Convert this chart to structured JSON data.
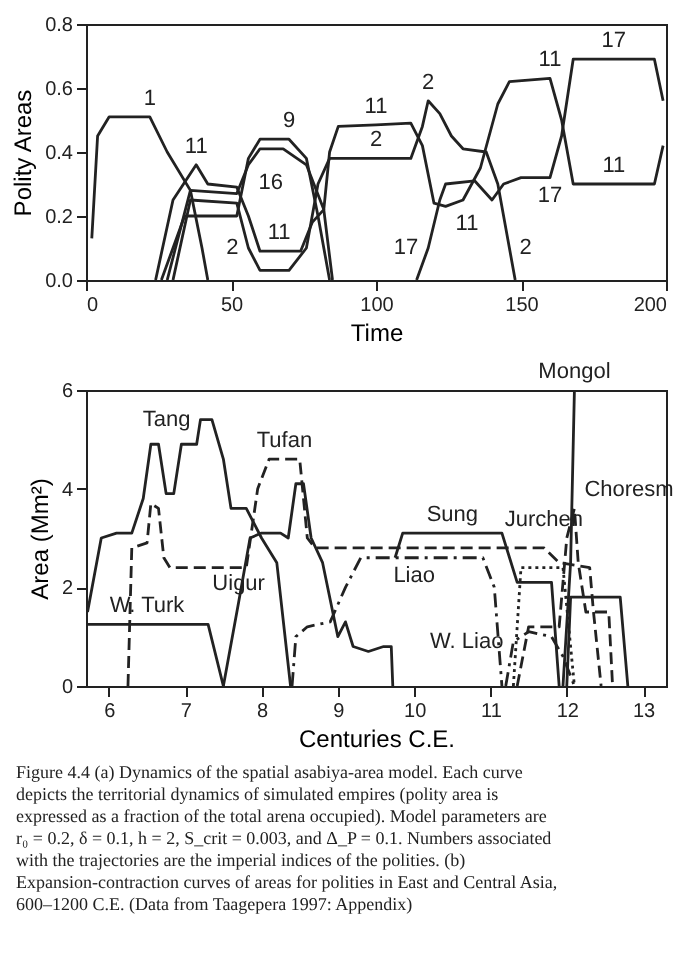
{
  "chart_data": [
    {
      "type": "line",
      "xlabel": "Time",
      "ylabel": "Polity Areas",
      "grid": false,
      "line_style": "solid",
      "xlim": [
        0,
        200
      ],
      "xticks": [
        0,
        50,
        100,
        150,
        200
      ],
      "ylim": [
        0,
        0.8
      ],
      "yticks": [
        {
          "value": 0,
          "label": "0.0"
        },
        0.2,
        0.4,
        0.6,
        0.8
      ],
      "series": [
        {
          "color": "#222222",
          "x": [
            2,
            4,
            8,
            22,
            28,
            36,
            40,
            42
          ],
          "values": [
            0.13,
            0.45,
            0.51,
            0.51,
            0.4,
            0.28,
            0.1,
            0
          ]
        },
        {
          "color": "#222222",
          "x": [
            24,
            30,
            38,
            42,
            52,
            56,
            60,
            74,
            78,
            82,
            84,
            87,
            100,
            112,
            116,
            120,
            124,
            130,
            136,
            142,
            146,
            160,
            164,
            168,
            182,
            196,
            199
          ],
          "values": [
            0,
            0.25,
            0.36,
            0.3,
            0.29,
            0.2,
            0.09,
            0.09,
            0.18,
            0.22,
            0.4,
            0.48,
            0.485,
            0.49,
            0.42,
            0.24,
            0.23,
            0.25,
            0.35,
            0.55,
            0.62,
            0.63,
            0.5,
            0.3,
            0.3,
            0.3,
            0.42
          ]
        },
        {
          "color": "#222222",
          "x": [
            26,
            34,
            44,
            52,
            56,
            60,
            70,
            76,
            80,
            84
          ],
          "values": [
            0,
            0.2,
            0.2,
            0.2,
            0.38,
            0.44,
            0.44,
            0.38,
            0.2,
            0
          ]
        },
        {
          "color": "#222222",
          "x": [
            28,
            36,
            52,
            56,
            60,
            68,
            76,
            82,
            85
          ],
          "values": [
            0,
            0.28,
            0.27,
            0.36,
            0.41,
            0.41,
            0.36,
            0.22,
            0
          ]
        },
        {
          "color": "#222222",
          "x": [
            30,
            36,
            52,
            56,
            60,
            70,
            76,
            80,
            84,
            86,
            100,
            112,
            116,
            118,
            122,
            126,
            130,
            138,
            142,
            146,
            148
          ],
          "values": [
            0,
            0.25,
            0.24,
            0.1,
            0.03,
            0.03,
            0.1,
            0.3,
            0.38,
            0.38,
            0.38,
            0.38,
            0.48,
            0.56,
            0.52,
            0.45,
            0.41,
            0.4,
            0.3,
            0.1,
            0
          ]
        },
        {
          "color": "#222222",
          "x": [
            114,
            118,
            122,
            124,
            134,
            140,
            144,
            150,
            160,
            164,
            168,
            182,
            196,
            199
          ],
          "values": [
            0,
            0.1,
            0.25,
            0.3,
            0.31,
            0.25,
            0.3,
            0.32,
            0.32,
            0.45,
            0.69,
            0.69,
            0.69,
            0.56
          ]
        }
      ],
      "annotations": [
        {
          "text": "1",
          "x": 22,
          "y": 0.51
        },
        {
          "text": "11",
          "x": 38,
          "y": 0.36
        },
        {
          "text": "9",
          "x": 70,
          "y": 0.44
        },
        {
          "text": "16",
          "x": 56,
          "y": 0.36
        },
        {
          "text": "11",
          "x": 74,
          "y": 0.09
        },
        {
          "text": "2",
          "x": 56,
          "y": 0.1
        },
        {
          "text": "11",
          "x": 100,
          "y": 0.485
        },
        {
          "text": "2",
          "x": 100,
          "y": 0.38
        },
        {
          "text": "2",
          "x": 118,
          "y": 0.56
        },
        {
          "text": "11",
          "x": 124,
          "y": 0.23
        },
        {
          "text": "2",
          "x": 146,
          "y": 0.1
        },
        {
          "text": "17",
          "x": 118,
          "y": 0.1
        },
        {
          "text": "11",
          "x": 160,
          "y": 0.63
        },
        {
          "text": "17",
          "x": 160,
          "y": 0.32
        },
        {
          "text": "17",
          "x": 182,
          "y": 0.69
        },
        {
          "text": "11",
          "x": 182,
          "y": 0.3
        }
      ]
    },
    {
      "type": "line",
      "xlabel": "Centuries C.E.",
      "ylabel": "Area (Mm²)",
      "grid": false,
      "xlim": [
        5.7,
        13.3
      ],
      "xticks": [
        6,
        7,
        8,
        9,
        10,
        11,
        12,
        13
      ],
      "ylim": [
        0,
        6
      ],
      "yticks": [
        0,
        2,
        4,
        6
      ],
      "series": [
        {
          "color": "#222222",
          "line_style": "solid",
          "x": [
            5.72,
            5.9,
            6.1,
            6.3,
            6.45,
            6.55,
            6.65,
            6.75,
            6.85,
            6.95,
            7.15,
            7.2,
            7.35,
            7.5,
            7.6,
            7.8,
            7.9,
            8.0,
            8.2,
            8.38
          ],
          "values": [
            1.5,
            3.0,
            3.1,
            3.1,
            3.8,
            4.9,
            4.9,
            3.9,
            3.9,
            4.9,
            4.9,
            5.4,
            5.4,
            4.6,
            3.6,
            3.6,
            3.3,
            3.0,
            2.5,
            0
          ]
        },
        {
          "color": "#222222",
          "line_style": "dashed",
          "x": [
            6.25,
            6.3,
            6.5,
            6.55,
            6.65,
            6.72,
            6.8,
            7.8,
            7.95,
            8.1,
            8.3,
            8.5,
            8.6,
            8.7,
            11.7,
            11.9,
            12.3,
            12.35,
            12.45
          ],
          "values": [
            0,
            2.8,
            2.9,
            3.7,
            3.6,
            2.6,
            2.4,
            2.4,
            4.0,
            4.6,
            4.6,
            4.6,
            3.0,
            2.8,
            2.8,
            2.5,
            2.4,
            1.5,
            0
          ]
        },
        {
          "color": "#222222",
          "line_style": "solid",
          "x": [
            5.72,
            6.5,
            7.3,
            7.5
          ],
          "values": [
            1.25,
            1.25,
            1.25,
            0
          ]
        },
        {
          "color": "#222222",
          "line_style": "solid",
          "x": [
            7.5,
            7.7,
            7.85,
            8.0,
            8.25,
            8.35,
            8.45,
            8.55,
            8.65,
            8.8,
            9.0,
            9.1,
            9.2,
            9.4,
            9.6,
            9.7,
            9.72
          ],
          "values": [
            0,
            1.7,
            3.0,
            3.1,
            3.1,
            3.0,
            4.1,
            4.1,
            3.0,
            2.5,
            1.0,
            1.3,
            0.8,
            0.7,
            0.8,
            0.8,
            0
          ]
        },
        {
          "color": "#222222",
          "line_style": "solid",
          "x": [
            9.75,
            9.85,
            10.5,
            11.15,
            11.25,
            11.35,
            11.8,
            11.9
          ],
          "values": [
            2.6,
            3.1,
            3.1,
            3.1,
            2.6,
            2.1,
            2.1,
            0
          ]
        },
        {
          "color": "#222222",
          "line_style": "dashdot",
          "x": [
            8.4,
            8.45,
            8.6,
            8.9,
            9.1,
            9.3,
            10.0,
            10.9,
            11.05,
            11.15
          ],
          "values": [
            0,
            1.0,
            1.2,
            1.3,
            2.0,
            2.6,
            2.6,
            2.6,
            2.0,
            0
          ]
        },
        {
          "color": "#222222",
          "line_style": "dashdot",
          "x": [
            11.2,
            11.3,
            11.5,
            11.8,
            11.95,
            12.1
          ],
          "values": [
            0,
            0.9,
            1.1,
            1.0,
            0.6,
            0
          ]
        },
        {
          "color": "#222222",
          "line_style": "dotted",
          "x": [
            11.3,
            11.4,
            11.7,
            11.95,
            12.1
          ],
          "values": [
            0,
            2.4,
            2.4,
            2.4,
            0
          ]
        },
        {
          "color": "#222222",
          "line_style": "dashed",
          "x": [
            11.35,
            11.5,
            11.9,
            12.0,
            12.1,
            12.15,
            12.25,
            12.55,
            12.6
          ],
          "values": [
            0,
            1.2,
            1.2,
            3.0,
            3.6,
            2.5,
            1.5,
            1.5,
            0
          ]
        },
        {
          "color": "#222222",
          "line_style": "solid",
          "x": [
            12.0,
            12.05,
            12.7,
            12.8
          ],
          "values": [
            0,
            1.8,
            1.8,
            0
          ]
        },
        {
          "color": "#222222",
          "line_style": "solid",
          "x": [
            11.95,
            12.05,
            12.1
          ],
          "values": [
            0,
            2.5,
            6.0
          ]
        }
      ],
      "annotations": [
        {
          "text": "Tang",
          "x": 7.2,
          "y": 5.4
        },
        {
          "text": "Tufan",
          "x": 8.3,
          "y": 4.6
        },
        {
          "text": "W. Turk",
          "x": 6.5,
          "y": 1.25
        },
        {
          "text": "Uigur",
          "x": 7.7,
          "y": 1.7
        },
        {
          "text": "Sung",
          "x": 10.5,
          "y": 3.1
        },
        {
          "text": "Liao",
          "x": 10.0,
          "y": 2.6
        },
        {
          "text": "W. Liao",
          "x": 11.3,
          "y": 0.9
        },
        {
          "text": "Jurchen",
          "x": 11.7,
          "y": 2.4
        },
        {
          "text": "Mongol",
          "x": 12.1,
          "y": 6.0
        },
        {
          "text": "Choresm",
          "x": 12.1,
          "y": 3.6
        },
        "Figure 4.4 (a) Dynamics of the spatial asabiya-area model. Each curve depicts the territorial dynamics of simulated empires (polity area is expressed as a fraction of the total arena occupied). Model parameters are r₀ = 0.2, δ = 0.1, h = 2, S_crit = 0.003, and Δ_P = 0.1. Numbers associated with the trajectories are the imperial indices of the polities. (b) Expansion-contraction curves of areas for polities in East and Central Asia, 600–1200 C.E. (Data from Taagepera 1997: Appendix)"
      ]
    }
  ]
}
